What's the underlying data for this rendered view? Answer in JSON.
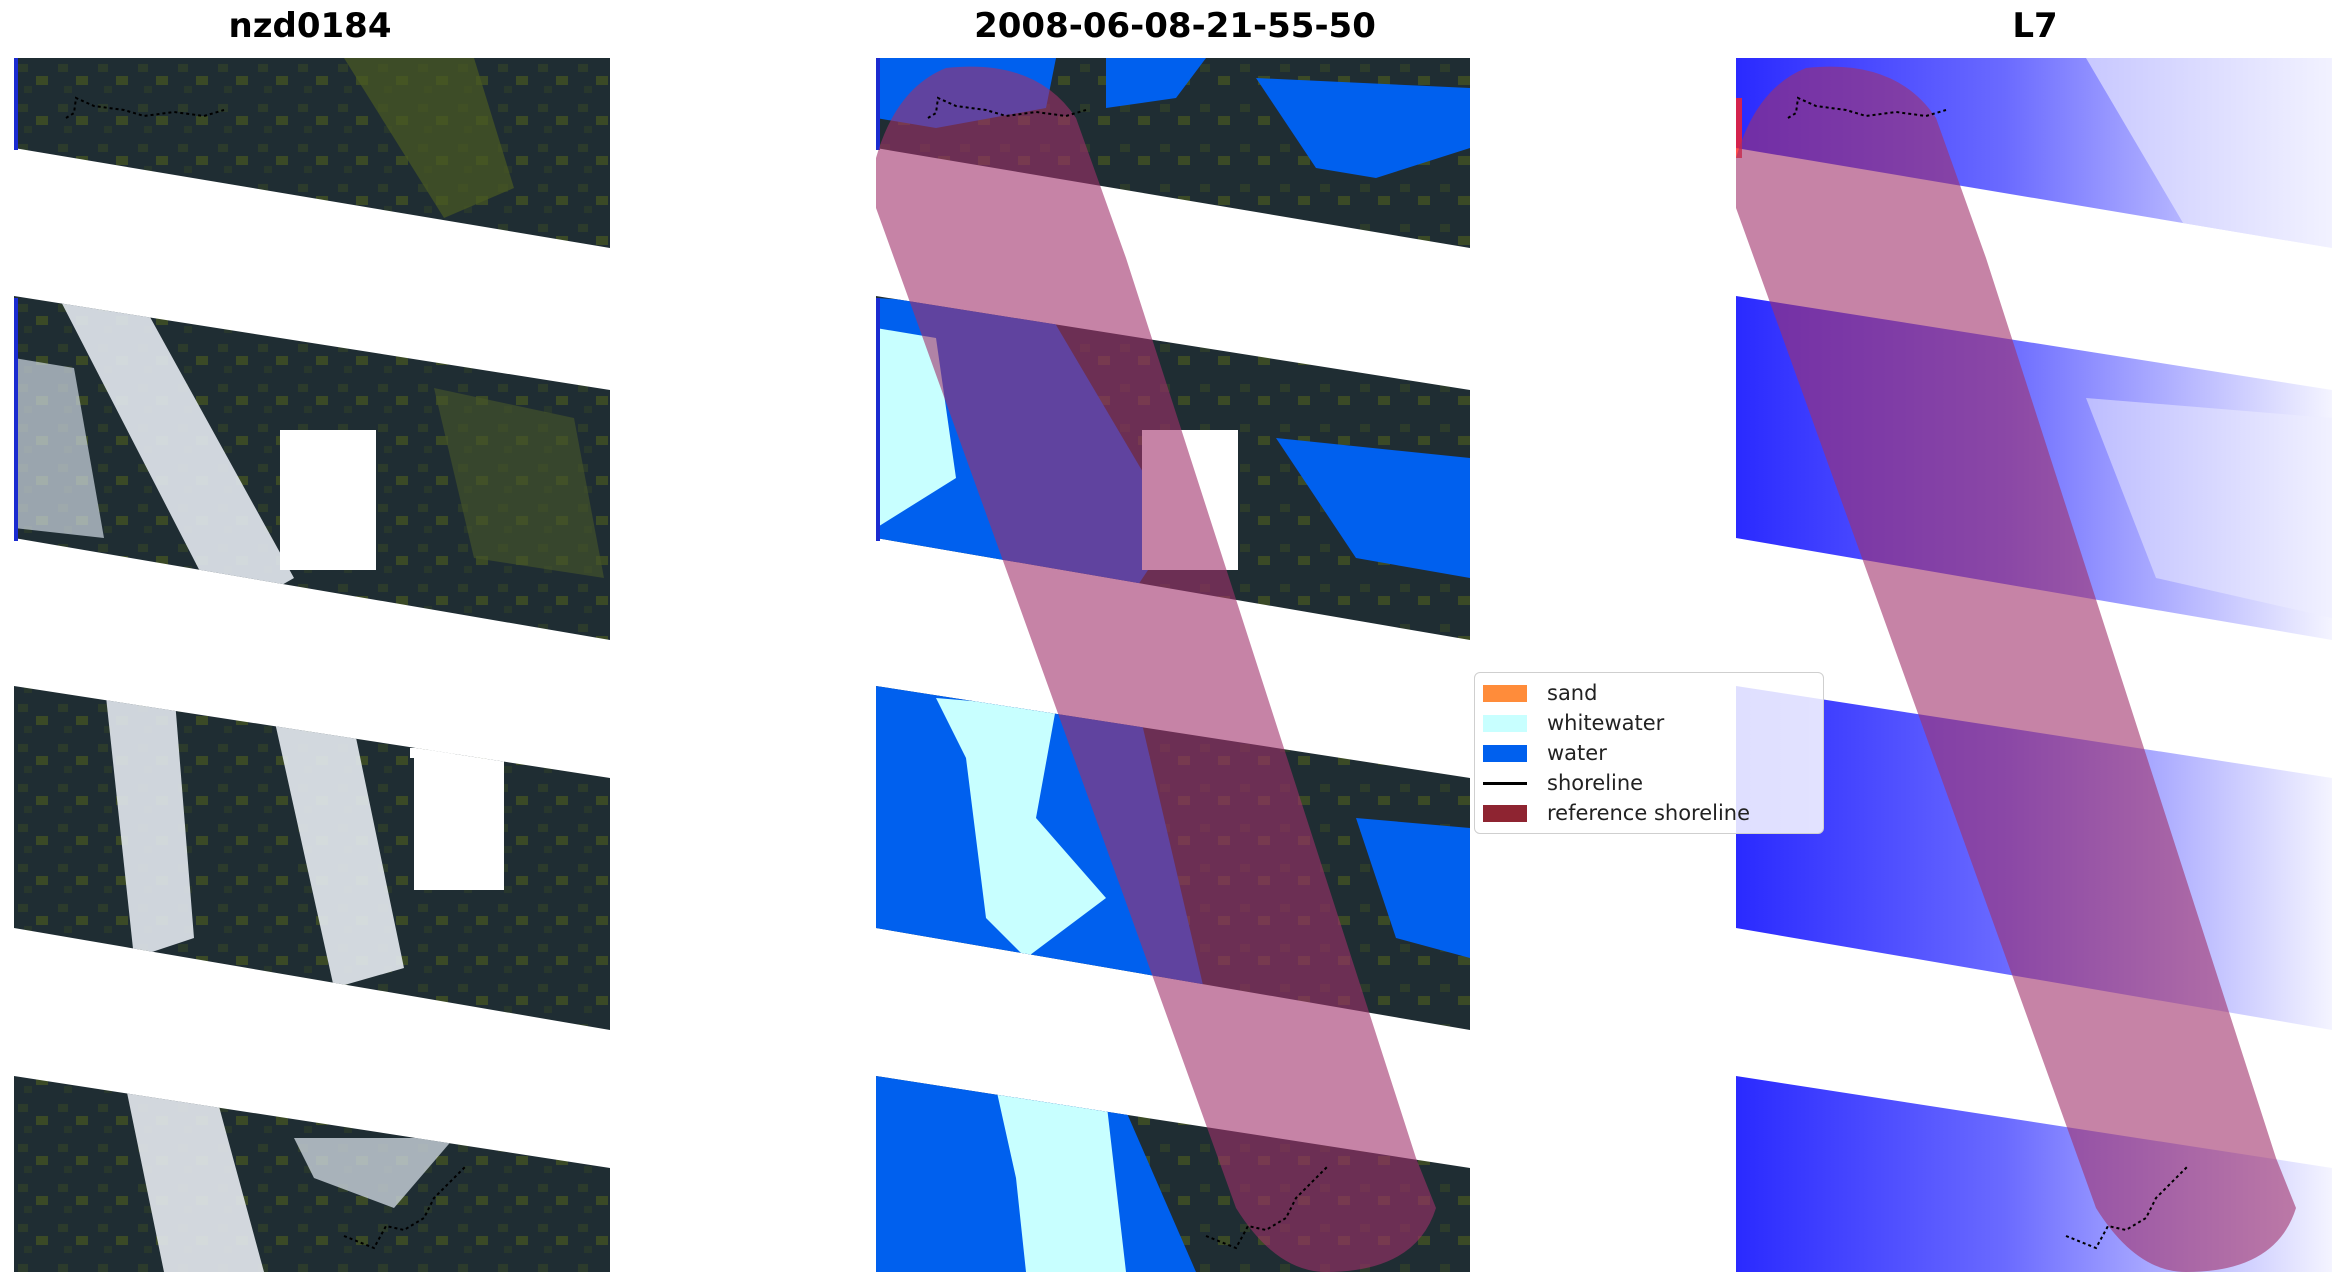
{
  "titles": {
    "left": "nzd0184",
    "center": "2008-06-08-21-55-50",
    "right": "L7"
  },
  "legend": [
    {
      "label": "sand",
      "color": "#ff8c3a",
      "kind": "patch"
    },
    {
      "label": "whitewater",
      "color": "#c8ffff",
      "kind": "patch"
    },
    {
      "label": "water",
      "color": "#0060ee",
      "kind": "patch"
    },
    {
      "label": "shoreline",
      "color": "#000000",
      "kind": "line"
    },
    {
      "label": "reference shoreline",
      "color": "#8e2431",
      "kind": "patch"
    }
  ],
  "colors": {
    "land": "#1e2a36",
    "vegetation": "#4a5a2a",
    "cloud": "#dde4ec",
    "water_class": "#0060ee",
    "whitewater_class": "#c8ffff",
    "buffer": "#a0306a",
    "reference_shoreline": "#8e2431",
    "index_low": "#2a2aff",
    "index_high": "#f4f4ff"
  }
}
